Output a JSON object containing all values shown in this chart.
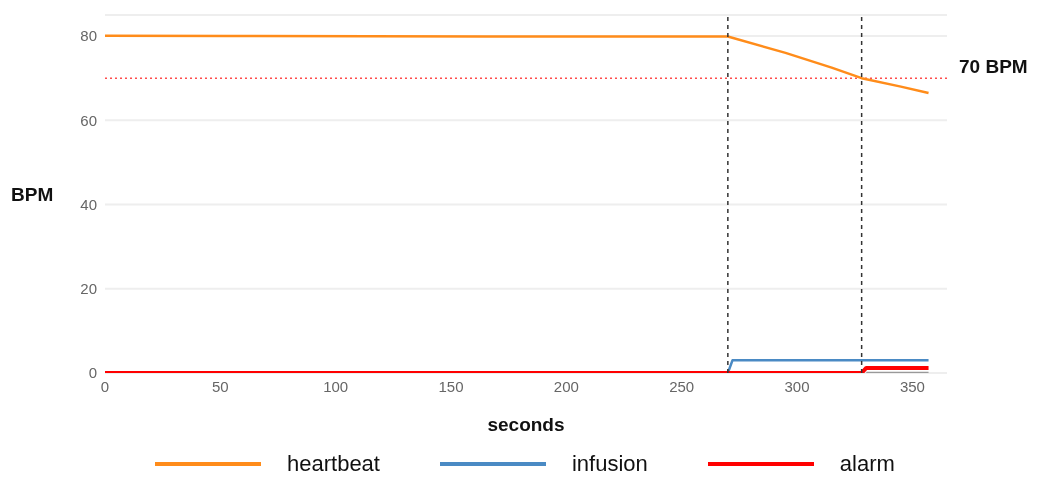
{
  "chart_data": {
    "type": "line",
    "xlabel": "seconds",
    "ylabel": "BPM",
    "xlim": [
      0,
      365
    ],
    "xticks": [
      0,
      50,
      100,
      150,
      200,
      250,
      300,
      350
    ],
    "ylim": [
      0,
      85
    ],
    "yticks": [
      0,
      20,
      40,
      60,
      80
    ],
    "grid": "y",
    "legend": "bottom",
    "marker": "none",
    "line_style": "solid",
    "series": [
      {
        "name": "heartbeat",
        "color": "#ff8c1a",
        "x": [
          0,
          55,
          165,
          270,
          295,
          315,
          328,
          345,
          357
        ],
        "values": [
          80.1,
          80,
          79.9,
          79.9,
          76,
          72.5,
          70,
          68,
          66.5
        ]
      },
      {
        "name": "infusion",
        "color": "#4a8ac4",
        "x": [
          270,
          272,
          357
        ],
        "values": [
          0,
          3,
          3
        ]
      },
      {
        "name": "alarm",
        "color": "#ff0000",
        "x": [
          0,
          328,
          330,
          357
        ],
        "values": [
          0,
          0,
          1.2,
          1.2
        ]
      },
      {
        "color": "#999999",
        "x": [
          330,
          357
        ],
        "values": [
          0,
          0
        ]
      }
    ],
    "ref_lines": [
      {
        "axis": "y",
        "value": 70,
        "label": "70 BPM",
        "color": "#ff4d4d",
        "line_style": "dotted"
      },
      {
        "axis": "x",
        "value": 270,
        "color": "#333333",
        "line_style": "dashed"
      },
      {
        "axis": "x",
        "value": 328,
        "color": "#333333",
        "line_style": "dashed"
      }
    ]
  }
}
